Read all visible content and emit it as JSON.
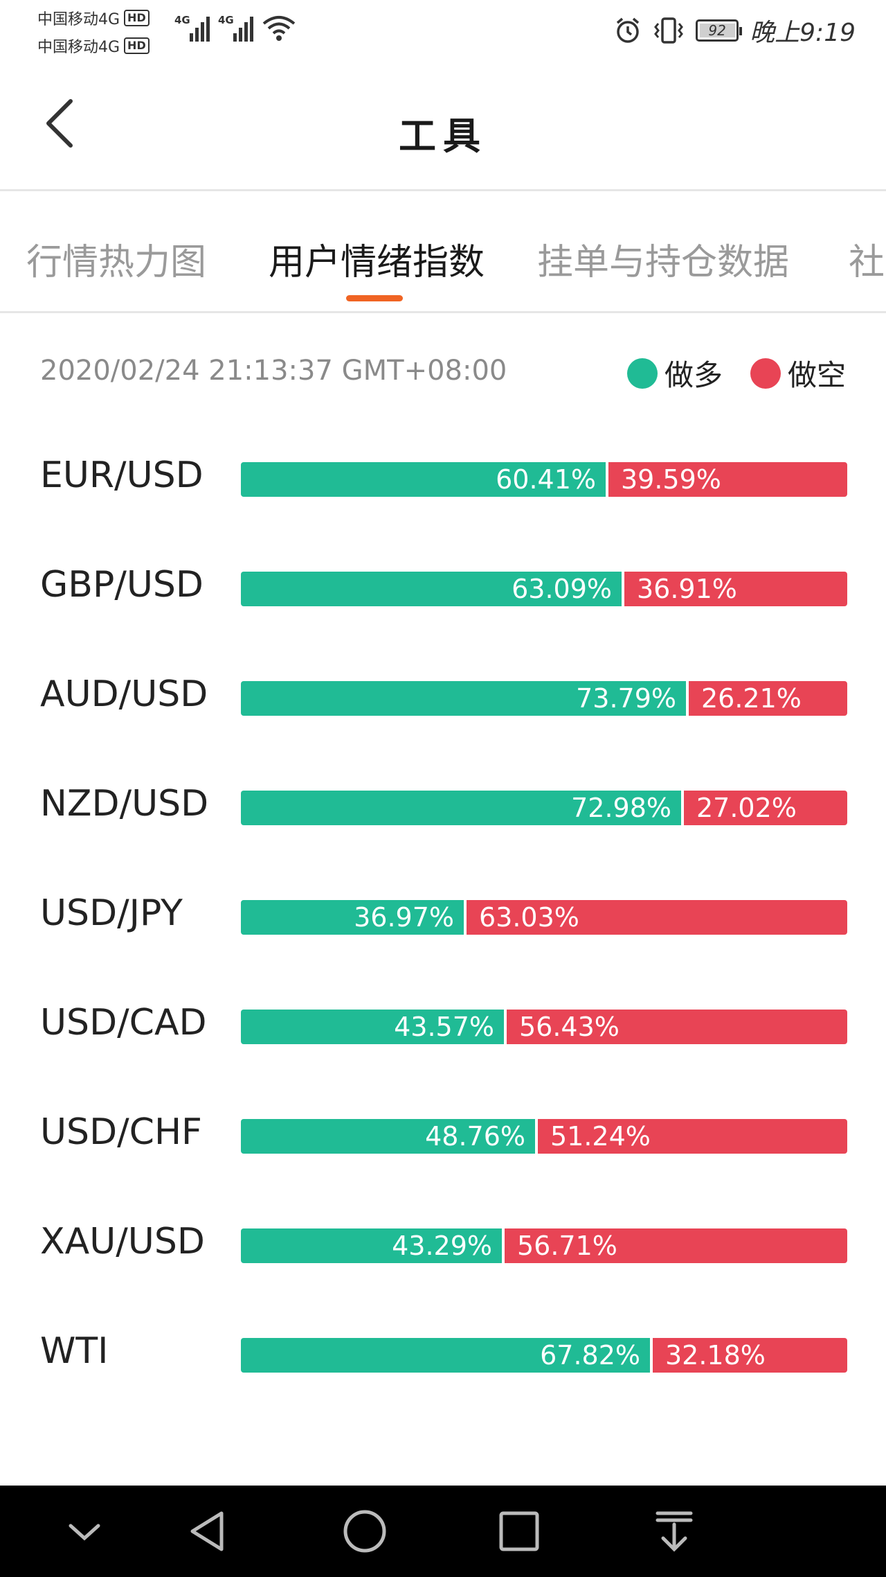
{
  "status": {
    "carrier1": "中国移动4G",
    "carrier2": "中国移动4G",
    "hd": "HD",
    "net1": "4G",
    "net2": "4G",
    "battery": "92",
    "time": "晚上9:19"
  },
  "header": {
    "title": "工具"
  },
  "tabs": [
    {
      "label": "行情热力图"
    },
    {
      "label": "用户情绪指数"
    },
    {
      "label": "挂单与持仓数据"
    },
    {
      "label": "社"
    }
  ],
  "timestamp": "2020/02/24 21:13:37 GMT+08:00",
  "legend": {
    "long_label": "做多",
    "short_label": "做空",
    "long_color": "#20bb95",
    "short_color": "#e84455"
  },
  "rows": [
    {
      "pair": "EUR/USD",
      "long": 60.41,
      "short": 39.59,
      "long_text": "60.41%",
      "short_text": "39.59%"
    },
    {
      "pair": "GBP/USD",
      "long": 63.09,
      "short": 36.91,
      "long_text": "63.09%",
      "short_text": "36.91%"
    },
    {
      "pair": "AUD/USD",
      "long": 73.79,
      "short": 26.21,
      "long_text": "73.79%",
      "short_text": "26.21%"
    },
    {
      "pair": "NZD/USD",
      "long": 72.98,
      "short": 27.02,
      "long_text": "72.98%",
      "short_text": "27.02%"
    },
    {
      "pair": "USD/JPY",
      "long": 36.97,
      "short": 63.03,
      "long_text": "36.97%",
      "short_text": "63.03%"
    },
    {
      "pair": "USD/CAD",
      "long": 43.57,
      "short": 56.43,
      "long_text": "43.57%",
      "short_text": "56.43%"
    },
    {
      "pair": "USD/CHF",
      "long": 48.76,
      "short": 51.24,
      "long_text": "48.76%",
      "short_text": "51.24%"
    },
    {
      "pair": "XAU/USD",
      "long": 43.29,
      "short": 56.71,
      "long_text": "43.29%",
      "short_text": "56.71%"
    },
    {
      "pair": "WTI",
      "long": 67.82,
      "short": 32.18,
      "long_text": "67.82%",
      "short_text": "32.18%"
    }
  ],
  "icons": {
    "back": "chevron-left-icon",
    "alarm": "alarm-icon",
    "vibrate": "vibrate-icon",
    "wifi": "wifi-icon",
    "nav_hide": "chevron-down-icon",
    "nav_back": "triangle-back-icon",
    "nav_home": "circle-home-icon",
    "nav_recent": "square-recent-icon",
    "nav_notify": "pull-down-icon"
  }
}
